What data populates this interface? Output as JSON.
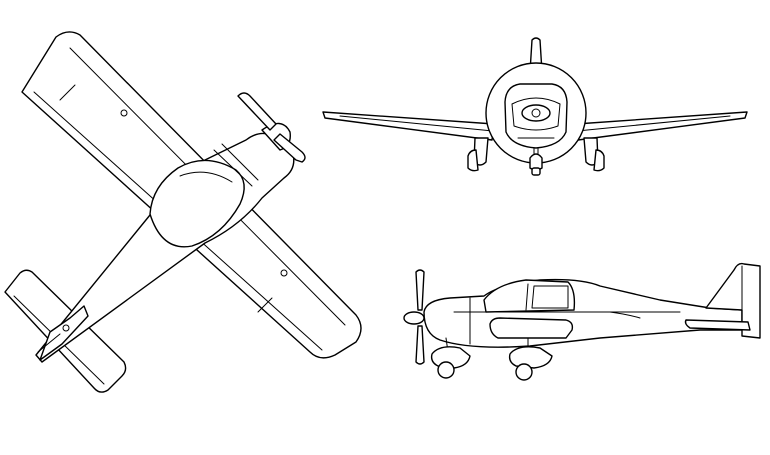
{
  "drawing": {
    "views": [
      {
        "id": "top-view"
      },
      {
        "id": "front-view"
      },
      {
        "id": "side-view"
      }
    ],
    "colors": {
      "line": "#000000",
      "background": "#ffffff"
    }
  }
}
